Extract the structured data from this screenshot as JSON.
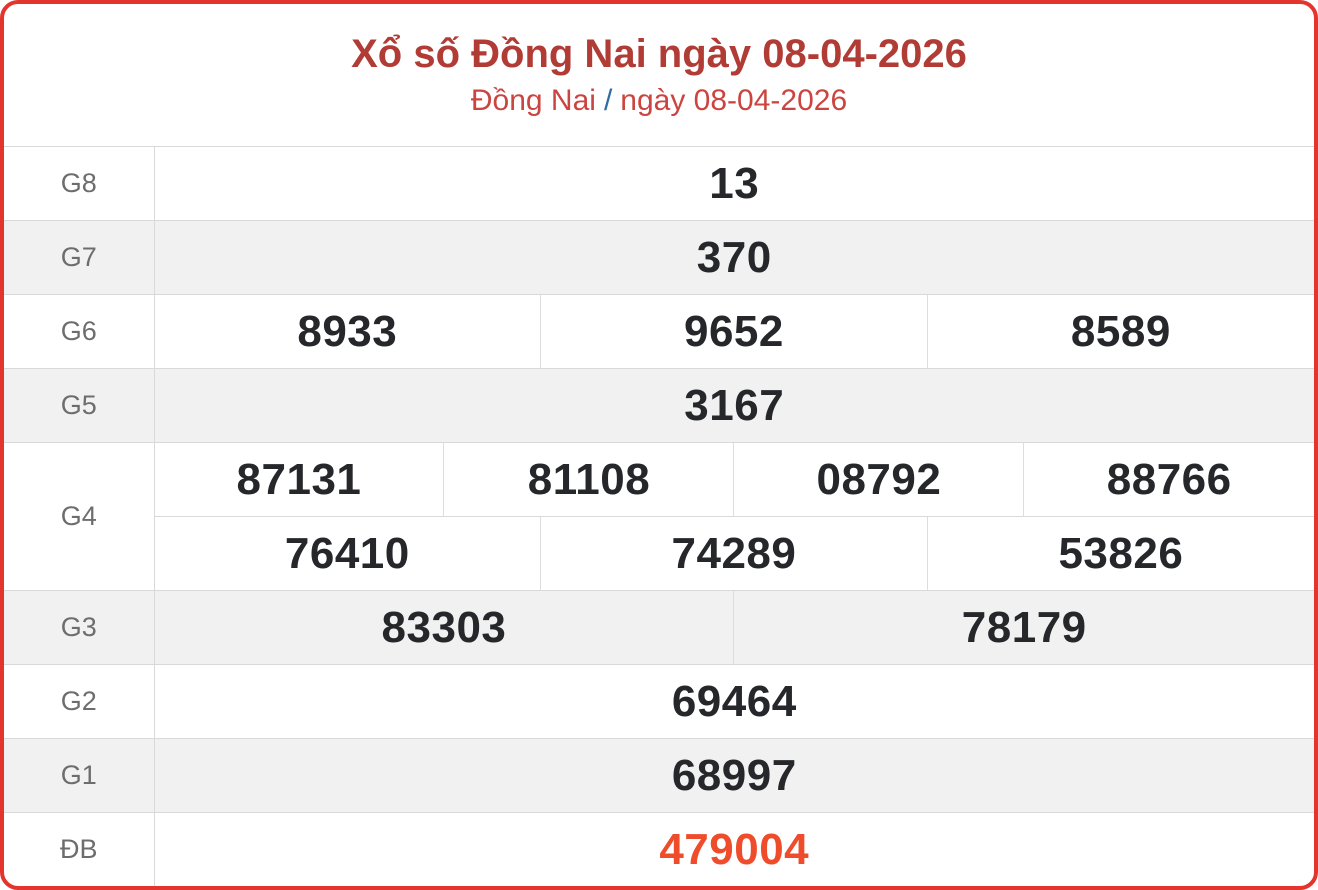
{
  "header": {
    "title": "Xổ số Đồng Nai ngày 08-04-2026",
    "breadcrumb": {
      "region": "Đồng Nai",
      "separator": "/",
      "date": "ngày 08-04-2026"
    }
  },
  "results": {
    "g8": {
      "label": "G8",
      "values": [
        "13"
      ]
    },
    "g7": {
      "label": "G7",
      "values": [
        "370"
      ]
    },
    "g6": {
      "label": "G6",
      "values": [
        "8933",
        "9652",
        "8589"
      ]
    },
    "g5": {
      "label": "G5",
      "values": [
        "3167"
      ]
    },
    "g4": {
      "label": "G4",
      "row1": [
        "87131",
        "81108",
        "08792",
        "88766"
      ],
      "row2": [
        "76410",
        "74289",
        "53826"
      ]
    },
    "g3": {
      "label": "G3",
      "values": [
        "83303",
        "78179"
      ]
    },
    "g2": {
      "label": "G2",
      "values": [
        "69464"
      ]
    },
    "g1": {
      "label": "G1",
      "values": [
        "68997"
      ]
    },
    "db": {
      "label": "ĐB",
      "values": [
        "479004"
      ]
    }
  },
  "colors": {
    "card_border": "#e3342e",
    "title_text": "#b13c36",
    "subtitle_text": "#cb4540",
    "breadcrumb_separator": "#2e6da4",
    "value_text": "#25272b",
    "special_value_text": "#ef4c2b",
    "label_text": "#6d6d6d",
    "alt_row_bg": "#f1f1f1",
    "grid_line": "#d9d9d9"
  }
}
